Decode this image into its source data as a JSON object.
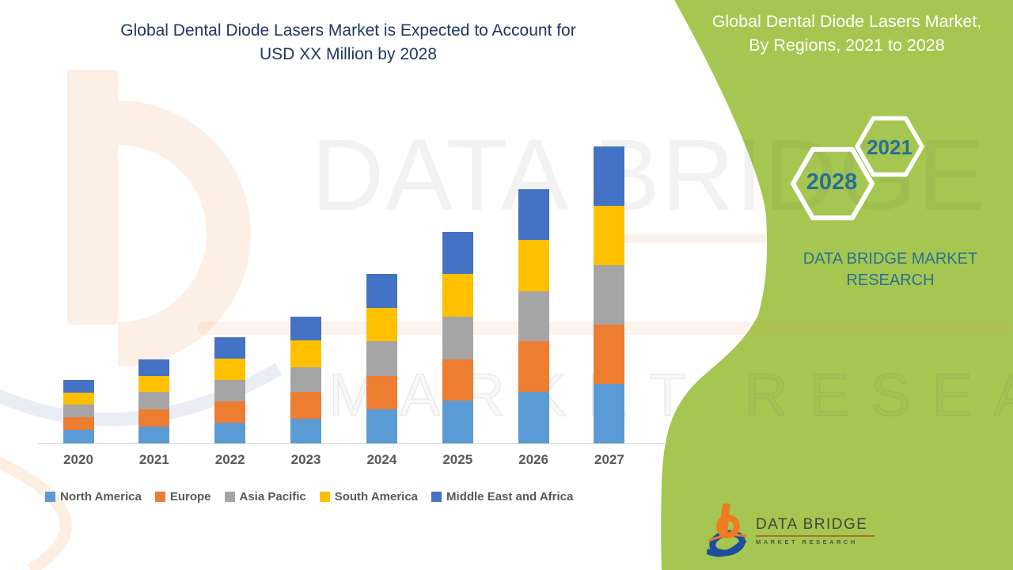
{
  "title": {
    "line1": "Global Dental Diode Lasers Market is Expected to Account for",
    "line2": "USD XX Million by 2028"
  },
  "panel": {
    "heading_line1": "Global Dental Diode Lasers Market,",
    "heading_line2": "By Regions, 2021 to 2028",
    "hexagons": [
      {
        "label": "2021"
      },
      {
        "label": "2028"
      }
    ],
    "brand_line1": "DATA BRIDGE MARKET",
    "brand_line2": "RESEARCH",
    "background_color": "#a5c751",
    "heading_color": "#ffffff",
    "accent_text_color": "#2B7094"
  },
  "logo": {
    "name": "DATA BRIDGE",
    "subtitle": "MARKET RESEARCH"
  },
  "watermark": {
    "line1": "DATA BRIDGE",
    "line2": "MARKET RESEARCH"
  },
  "chart_data": {
    "type": "bar",
    "stacked": true,
    "title": "Global Dental Diode Lasers Market is Expected to Account for USD XX Million by 2028",
    "categories": [
      "2020",
      "2021",
      "2022",
      "2023",
      "2024",
      "2025",
      "2026",
      "2027"
    ],
    "series": [
      {
        "name": "North America",
        "color": "#5B9BD5",
        "values": [
          17,
          21,
          26,
          31,
          43,
          54,
          65,
          75
        ]
      },
      {
        "name": "Europe",
        "color": "#ED7D31",
        "values": [
          16,
          22,
          27,
          34,
          42,
          52,
          64,
          75
        ]
      },
      {
        "name": "Asia Pacific",
        "color": "#A5A5A5",
        "values": [
          16,
          22,
          27,
          31,
          44,
          54,
          63,
          75
        ]
      },
      {
        "name": "South America",
        "color": "#FFC000",
        "values": [
          15,
          20,
          27,
          34,
          42,
          54,
          65,
          75
        ]
      },
      {
        "name": "Middle East and Africa",
        "color": "#4472C4",
        "values": [
          16,
          21,
          27,
          30,
          43,
          53,
          64,
          75
        ]
      }
    ],
    "totals": [
      80,
      106,
      134,
      160,
      214,
      267,
      321,
      375
    ],
    "xlabel": "",
    "ylabel": "",
    "value_unit": "relative units (y-axis not shown; values masked as USD XX Million)",
    "y_axis_visible": false,
    "grid": false,
    "legend_position": "bottom",
    "text_color": "#595959"
  }
}
